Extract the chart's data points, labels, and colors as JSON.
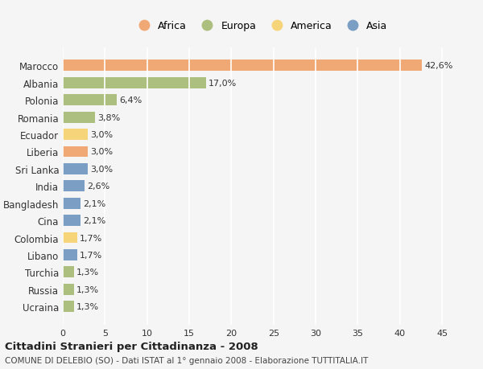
{
  "categories": [
    "Marocco",
    "Albania",
    "Polonia",
    "Romania",
    "Ecuador",
    "Liberia",
    "Sri Lanka",
    "India",
    "Bangladesh",
    "Cina",
    "Colombia",
    "Libano",
    "Turchia",
    "Russia",
    "Ucraina"
  ],
  "values": [
    42.6,
    17.0,
    6.4,
    3.8,
    3.0,
    3.0,
    3.0,
    2.6,
    2.1,
    2.1,
    1.7,
    1.7,
    1.3,
    1.3,
    1.3
  ],
  "labels": [
    "42,6%",
    "17,0%",
    "6,4%",
    "3,8%",
    "3,0%",
    "3,0%",
    "3,0%",
    "2,6%",
    "2,1%",
    "2,1%",
    "1,7%",
    "1,7%",
    "1,3%",
    "1,3%",
    "1,3%"
  ],
  "colors": [
    "#F0A875",
    "#ADBF7E",
    "#ADBF7E",
    "#ADBF7E",
    "#F5D47A",
    "#F0A875",
    "#7B9EC4",
    "#7B9EC4",
    "#7B9EC4",
    "#7B9EC4",
    "#F5D47A",
    "#7B9EC4",
    "#ADBF7E",
    "#ADBF7E",
    "#ADBF7E"
  ],
  "legend_labels": [
    "Africa",
    "Europa",
    "America",
    "Asia"
  ],
  "legend_colors": [
    "#F0A875",
    "#ADBF7E",
    "#F5D47A",
    "#7B9EC4"
  ],
  "title": "Cittadini Stranieri per Cittadinanza - 2008",
  "subtitle": "COMUNE DI DELEBIO (SO) - Dati ISTAT al 1° gennaio 2008 - Elaborazione TUTTITALIA.IT",
  "xlim": [
    0,
    47
  ],
  "xticks": [
    0,
    5,
    10,
    15,
    20,
    25,
    30,
    35,
    40,
    45
  ],
  "background_color": "#f5f5f5",
  "grid_color": "#ffffff"
}
